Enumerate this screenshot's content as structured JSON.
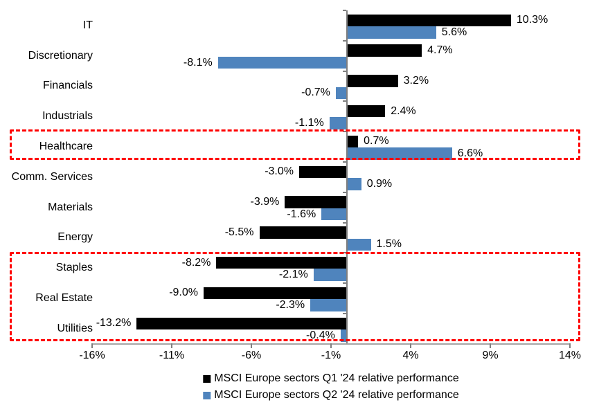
{
  "chart_data": {
    "type": "bar",
    "orientation": "horizontal",
    "title": "",
    "categories": [
      "IT",
      "Discretionary",
      "Financials",
      "Industrials",
      "Healthcare",
      "Comm. Services",
      "Materials",
      "Energy",
      "Staples",
      "Real Estate",
      "Utilities"
    ],
    "series": [
      {
        "name": "MSCI Europe sectors Q1 '24 relative performance",
        "color": "#000000",
        "values": [
          10.3,
          4.7,
          3.2,
          2.4,
          0.7,
          -3.0,
          -3.9,
          -5.5,
          -8.2,
          -9.0,
          -13.2
        ]
      },
      {
        "name": "MSCI Europe sectors Q2 '24 relative performance",
        "color": "#4f84bd",
        "values": [
          5.6,
          -8.1,
          -0.7,
          -1.1,
          6.6,
          0.9,
          -1.6,
          1.5,
          -2.1,
          -2.3,
          -0.4
        ]
      }
    ],
    "data_labels": {
      "format": "one-decimal-percent",
      "q1_labels": [
        "10.3%",
        "4.7%",
        "3.2%",
        "2.4%",
        "0.7%",
        "-3.0%",
        "-3.9%",
        "-5.5%",
        "-8.2%",
        "-9.0%",
        "-13.2%"
      ],
      "q2_labels": [
        "5.6%",
        "-8.1%",
        "-0.7%",
        "-1.1%",
        "6.6%",
        "0.9%",
        "-1.6%",
        "1.5%",
        "-2.1%",
        "-2.3%",
        "-0.4%"
      ]
    },
    "x_axis": {
      "min": -16,
      "max": 14,
      "tick_values": [
        -16,
        -11,
        -6,
        -1,
        4,
        9,
        14
      ],
      "tick_labels": [
        "-16%",
        "-11%",
        "-6%",
        "-1%",
        "4%",
        "9%",
        "14%"
      ]
    },
    "grid": false,
    "legend_position": "bottom",
    "highlights": [
      {
        "label": "healthcare-highlight",
        "rows": [
          "Healthcare"
        ],
        "color": "#ff0000",
        "style": "dashed"
      },
      {
        "label": "defensives-highlight",
        "rows": [
          "Staples",
          "Real Estate",
          "Utilities"
        ],
        "color": "#ff0000",
        "style": "dashed"
      }
    ]
  }
}
